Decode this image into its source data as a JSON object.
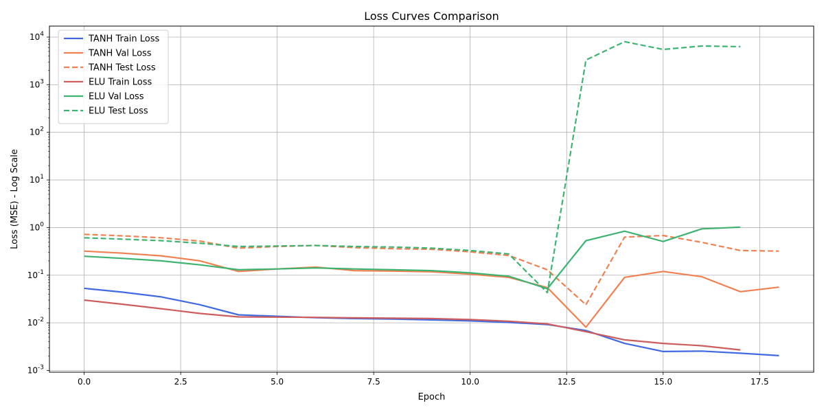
{
  "chart_data": {
    "type": "line",
    "title": "Loss Curves Comparison",
    "xlabel": "Epoch",
    "ylabel": "Loss (MSE) - Log Scale",
    "yscale": "log",
    "xlim": [
      -0.9,
      18.9
    ],
    "ylim": [
      0.00092,
      17000
    ],
    "x_ticks": [
      0.0,
      2.5,
      5.0,
      7.5,
      10.0,
      12.5,
      15.0,
      17.5
    ],
    "x_tick_labels": [
      "0.0",
      "2.5",
      "5.0",
      "7.5",
      "10.0",
      "12.5",
      "15.0",
      "17.5"
    ],
    "y_ticks": [
      0.001,
      0.01,
      0.1,
      1,
      10,
      100,
      1000,
      10000
    ],
    "y_tick_exponents": [
      "-3",
      "-2",
      "-1",
      "0",
      "1",
      "2",
      "3",
      "4"
    ],
    "y_tick_base": "10",
    "grid": true,
    "legend_position": "top-left",
    "series": [
      {
        "name": "TANH Train Loss",
        "color": "#4169e1",
        "style": "solid",
        "x": [
          0,
          1,
          2,
          3,
          4,
          5,
          6,
          7,
          8,
          9,
          10,
          11,
          12,
          13,
          14,
          15,
          16,
          17,
          18
        ],
        "values": [
          0.053,
          0.044,
          0.035,
          0.024,
          0.0147,
          0.0137,
          0.0128,
          0.0123,
          0.012,
          0.0115,
          0.011,
          0.0102,
          0.0092,
          0.0069,
          0.0037,
          0.0025,
          0.00255,
          0.0023,
          0.00205
        ]
      },
      {
        "name": "TANH Val Loss",
        "color": "#f08050",
        "style": "solid",
        "x": [
          0,
          1,
          2,
          3,
          4,
          5,
          6,
          7,
          8,
          9,
          10,
          11,
          12,
          13,
          14,
          15,
          16,
          17,
          18
        ],
        "values": [
          0.32,
          0.29,
          0.255,
          0.2,
          0.12,
          0.135,
          0.148,
          0.125,
          0.122,
          0.118,
          0.105,
          0.09,
          0.055,
          0.0081,
          0.09,
          0.12,
          0.093,
          0.045,
          0.056
        ]
      },
      {
        "name": "TANH Test Loss",
        "color": "#f08050",
        "style": "dashed",
        "x": [
          0,
          1,
          2,
          3,
          4,
          5,
          6,
          7,
          8,
          9,
          10,
          11,
          12,
          13,
          14,
          15,
          16,
          17,
          18
        ],
        "values": [
          0.72,
          0.67,
          0.61,
          0.52,
          0.37,
          0.4,
          0.42,
          0.38,
          0.36,
          0.35,
          0.31,
          0.26,
          0.13,
          0.024,
          0.63,
          0.68,
          0.49,
          0.33,
          0.32
        ]
      },
      {
        "name": "ELU Train Loss",
        "color": "#cd5c5c",
        "style": "solid",
        "x": [
          0,
          1,
          2,
          3,
          4,
          5,
          6,
          7,
          8,
          9,
          10,
          11,
          12,
          13,
          14,
          15,
          16,
          17
        ],
        "values": [
          0.03,
          0.0245,
          0.0198,
          0.0157,
          0.0133,
          0.0132,
          0.013,
          0.0127,
          0.0125,
          0.0123,
          0.0117,
          0.0108,
          0.0095,
          0.0065,
          0.0044,
          0.0037,
          0.0033,
          0.0027
        ]
      },
      {
        "name": "ELU Val Loss",
        "color": "#3cb371",
        "style": "solid",
        "x": [
          0,
          1,
          2,
          3,
          4,
          5,
          6,
          7,
          8,
          9,
          10,
          11,
          12,
          13,
          14,
          15,
          16,
          17
        ],
        "values": [
          0.25,
          0.225,
          0.2,
          0.165,
          0.13,
          0.135,
          0.142,
          0.135,
          0.13,
          0.125,
          0.112,
          0.095,
          0.052,
          0.53,
          0.84,
          0.51,
          0.94,
          1.02
        ]
      },
      {
        "name": "ELU Test Loss",
        "color": "#3cb371",
        "style": "dashed",
        "x": [
          0,
          1,
          2,
          3,
          4,
          5,
          6,
          7,
          8,
          9,
          10,
          11,
          12,
          13,
          14,
          15,
          16,
          17
        ],
        "values": [
          0.61,
          0.57,
          0.53,
          0.47,
          0.4,
          0.41,
          0.42,
          0.4,
          0.39,
          0.37,
          0.33,
          0.28,
          0.043,
          3300,
          8000,
          5500,
          6500,
          6300
        ]
      }
    ]
  }
}
